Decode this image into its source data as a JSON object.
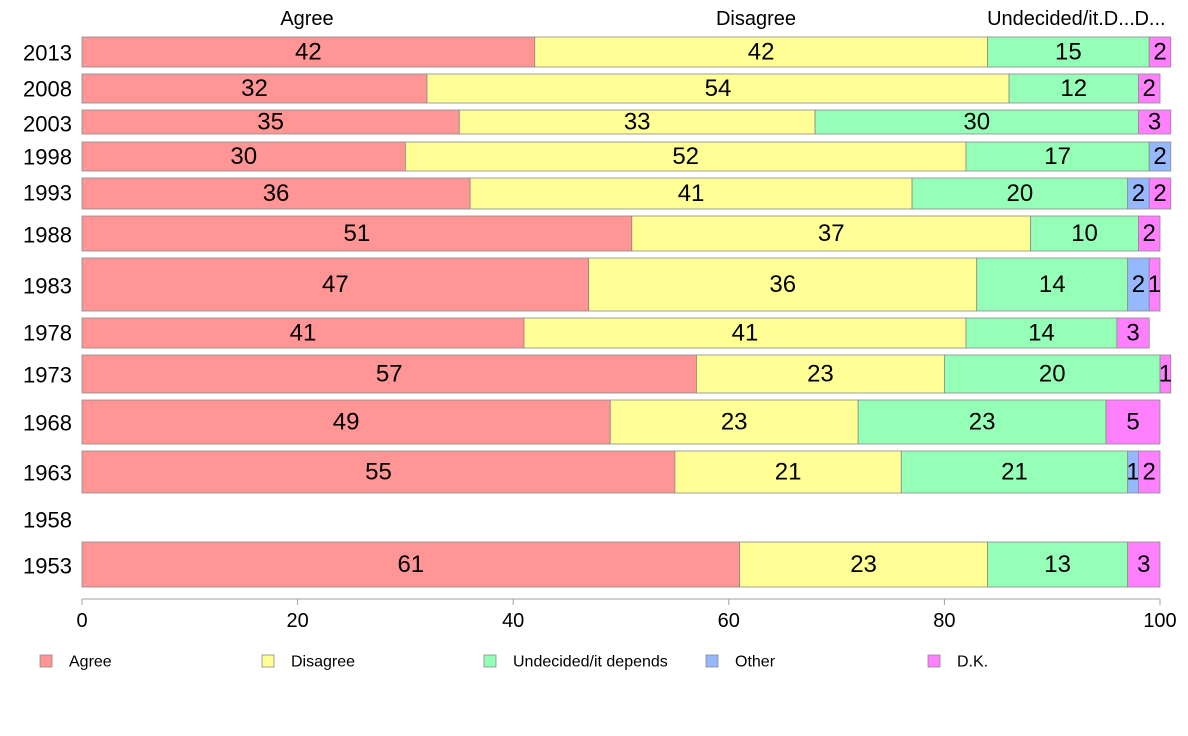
{
  "chart_data": {
    "type": "bar",
    "orientation": "horizontal",
    "stacked": true,
    "xlim": [
      0,
      100
    ],
    "x_ticks": [
      "0",
      "20",
      "40",
      "60",
      "80",
      "100"
    ],
    "legend_position": "bottom",
    "grid": false,
    "column_headers": [
      "Agree",
      "Disagree",
      "Undecided/it.D...",
      "D..."
    ],
    "categories": [
      "2013",
      "2008",
      "2003",
      "1998",
      "1993",
      "1988",
      "1983",
      "1978",
      "1973",
      "1968",
      "1963",
      "1958",
      "1953"
    ],
    "series": [
      {
        "name": "Agree",
        "color": "#ff9595",
        "values": [
          42,
          32,
          35,
          30,
          36,
          51,
          47,
          41,
          57,
          49,
          55,
          null,
          61
        ]
      },
      {
        "name": "Disagree",
        "color": "#ffff95",
        "values": [
          42,
          54,
          33,
          52,
          41,
          37,
          36,
          41,
          23,
          23,
          21,
          null,
          23
        ]
      },
      {
        "name": "Undecided/it depends",
        "color": "#95ffb8",
        "values": [
          15,
          12,
          30,
          17,
          20,
          10,
          14,
          14,
          20,
          23,
          21,
          null,
          13
        ]
      },
      {
        "name": "Other",
        "color": "#95b8ff",
        "values": [
          0,
          0,
          0,
          2,
          2,
          0,
          2,
          0,
          0,
          0,
          1,
          null,
          0
        ]
      },
      {
        "name": "D.K.",
        "color": "#ff80ff",
        "values": [
          2,
          2,
          3,
          0,
          2,
          2,
          1,
          3,
          1,
          5,
          2,
          null,
          3
        ]
      }
    ]
  }
}
